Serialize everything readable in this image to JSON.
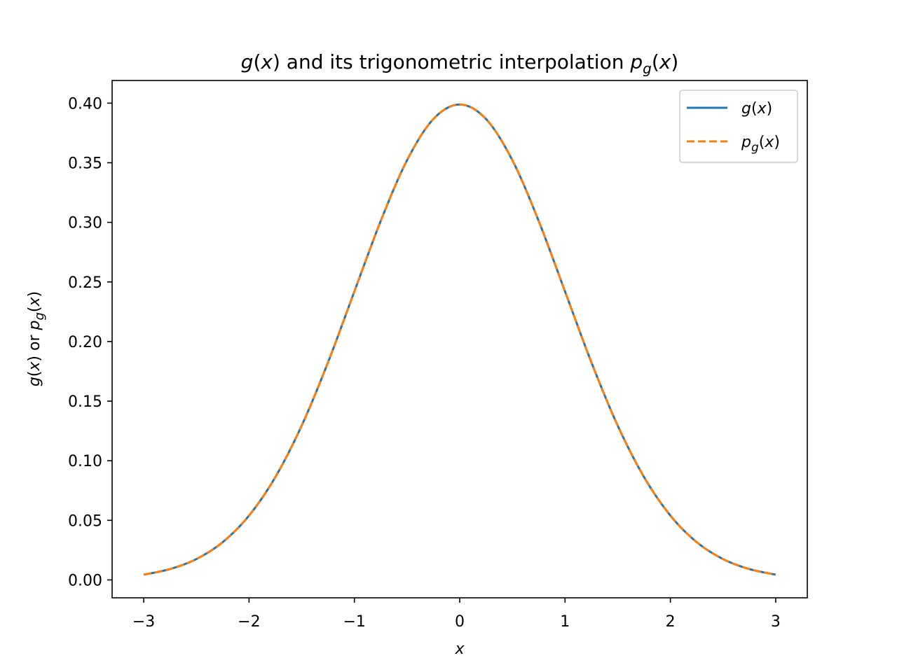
{
  "chart_data": {
    "type": "line",
    "title": {
      "g": "g",
      "x1": "x",
      "middle": " and its trigonometric interpolation ",
      "p": "p",
      "sub": "g",
      "x2": "x"
    },
    "xlabel": "x",
    "ylabel": {
      "g": "g",
      "x1": "x",
      "middle": " or ",
      "p": "p",
      "sub": "g",
      "x2": "x"
    },
    "xlim": [
      -3.3,
      3.3
    ],
    "ylim": [
      -0.015,
      0.419
    ],
    "xticks": [
      -3,
      -2,
      -1,
      0,
      1,
      2,
      3
    ],
    "xtick_labels": [
      "−3",
      "−2",
      "−1",
      "0",
      "1",
      "2",
      "3"
    ],
    "yticks": [
      0.0,
      0.05,
      0.1,
      0.15,
      0.2,
      0.25,
      0.3,
      0.35,
      0.4
    ],
    "ytick_labels": [
      "0.00",
      "0.05",
      "0.10",
      "0.15",
      "0.20",
      "0.25",
      "0.30",
      "0.35",
      "0.40"
    ],
    "grid": false,
    "legend_position": "top-right",
    "x": [
      -3.0,
      -2.75,
      -2.5,
      -2.25,
      -2.0,
      -1.75,
      -1.5,
      -1.25,
      -1.0,
      -0.75,
      -0.5,
      -0.25,
      0.0,
      0.25,
      0.5,
      0.75,
      1.0,
      1.25,
      1.5,
      1.75,
      2.0,
      2.25,
      2.5,
      2.75,
      3.0
    ],
    "series": [
      {
        "name": "g(x)",
        "legend": {
          "g": "g",
          "x": "x"
        },
        "color": "#1f77b4",
        "style": "solid",
        "values": [
          0.0044,
          0.0091,
          0.0175,
          0.0317,
          0.054,
          0.0863,
          0.1295,
          0.1826,
          0.242,
          0.3011,
          0.3521,
          0.3867,
          0.3989,
          0.3867,
          0.3521,
          0.3011,
          0.242,
          0.1826,
          0.1295,
          0.0863,
          0.054,
          0.0317,
          0.0175,
          0.0091,
          0.0044
        ]
      },
      {
        "name": "p_g(x)",
        "legend": {
          "p": "p",
          "sub": "g",
          "x": "x"
        },
        "color": "#ff7f0e",
        "style": "dashed",
        "values": [
          0.0044,
          0.0091,
          0.0175,
          0.0317,
          0.054,
          0.0863,
          0.1295,
          0.1826,
          0.242,
          0.3011,
          0.3521,
          0.3867,
          0.3989,
          0.3867,
          0.3521,
          0.3011,
          0.242,
          0.1826,
          0.1295,
          0.0863,
          0.054,
          0.0317,
          0.0175,
          0.0091,
          0.0044
        ]
      }
    ]
  }
}
